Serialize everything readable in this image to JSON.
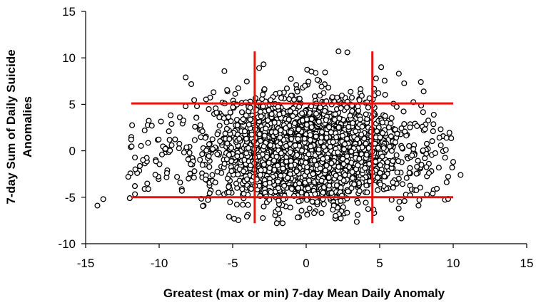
{
  "chart_data": {
    "type": "scatter",
    "xlabel": "Greatest (max or min) 7-day Mean Daily Anomaly",
    "ylabel": [
      "7-day Sum of Daily Suicide",
      "Anomalies"
    ],
    "xlim": [
      -15,
      15
    ],
    "ylim": [
      -10,
      15
    ],
    "x_ticks": [
      -15,
      -10,
      -5,
      0,
      5,
      10,
      15
    ],
    "y_ticks": [
      -10,
      -5,
      0,
      5,
      10,
      15
    ],
    "grid": false,
    "legend": "none",
    "marker": "open-circle",
    "point_count_estimate": 2500,
    "point_distribution": {
      "note_x_range": [
        -14.5,
        10.5
      ],
      "note_y_range": [
        -7.8,
        10.7
      ]
    },
    "sample_points": [
      {
        "x": -14.2,
        "y": -5.9
      },
      {
        "x": -13.8,
        "y": -5.2
      },
      {
        "x": -12.0,
        "y": -5.1
      },
      {
        "x": -12.1,
        "y": -2.8
      },
      {
        "x": -11.1,
        "y": -1.0
      },
      {
        "x": -10.5,
        "y": 2.7
      },
      {
        "x": -8.2,
        "y": 7.9
      },
      {
        "x": -6.3,
        "y": 6.3
      },
      {
        "x": -3.2,
        "y": 8.9
      },
      {
        "x": -2.9,
        "y": 9.3
      },
      {
        "x": 2.2,
        "y": 10.7
      },
      {
        "x": 2.8,
        "y": 10.6
      },
      {
        "x": 5.1,
        "y": 9.0
      },
      {
        "x": 6.3,
        "y": 8.3
      },
      {
        "x": 7.8,
        "y": 7.4
      },
      {
        "x": 9.5,
        "y": 0.1
      },
      {
        "x": 10.0,
        "y": -1.2
      },
      {
        "x": 10.5,
        "y": -2.6
      },
      {
        "x": 8.6,
        "y": -4.6
      },
      {
        "x": -2.0,
        "y": -7.8
      },
      {
        "x": 3.5,
        "y": -6.9
      },
      {
        "x": 2.0,
        "y": -7.0
      }
    ],
    "reference_lines": {
      "color": "#e8120c",
      "vertical": [
        {
          "x": -3.5,
          "y_range": [
            -7.8,
            10.7
          ]
        },
        {
          "x": 4.5,
          "y_range": [
            -7.8,
            10.7
          ]
        }
      ],
      "horizontal": [
        {
          "y": 5.1,
          "x_range": [
            -11.9,
            10.0
          ]
        },
        {
          "y": -5.0,
          "x_range": [
            -11.9,
            10.0
          ]
        }
      ]
    },
    "colors": {
      "marker_stroke": "#000000",
      "marker_fill": "#ffffff",
      "axis": "#000000"
    }
  }
}
